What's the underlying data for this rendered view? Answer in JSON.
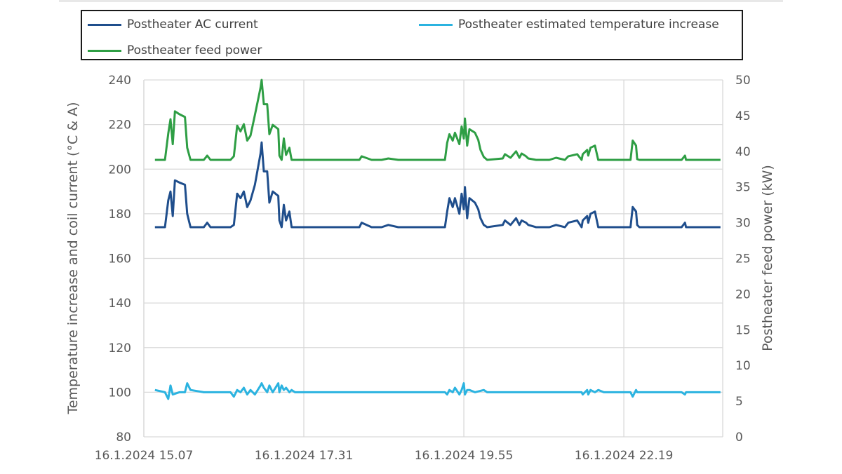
{
  "chart_data": {
    "type": "line",
    "ylabel_left": "Temperature increase  and  coil current (°C & A)",
    "ylabel_right": "Postheater feed power (kW)",
    "ylim_left": [
      80,
      240
    ],
    "ylim_right": [
      0,
      50
    ],
    "yticks_left": [
      "80",
      "100",
      "120",
      "140",
      "160",
      "180",
      "200",
      "220",
      "240"
    ],
    "yticks_right": [
      "0",
      "5",
      "10",
      "15",
      "20",
      "25",
      "30",
      "35",
      "40",
      "45",
      "50"
    ],
    "x_tick_labels": [
      "16.1.2024 15.07",
      "16.1.2024 17.31",
      "16.1.2024 19.55",
      "16.1.2024 22.19"
    ],
    "xlim": [
      "16.1.2024 15.07",
      "16.1.2024 23.48"
    ],
    "grid": true,
    "legend_position": "top",
    "series": [
      {
        "name": "Postheater AC current",
        "axis": "left",
        "color": "#1f4e8c",
        "points": [
          [
            "16.1.2024 15.17",
            174
          ],
          [
            "16.1.2024 15.26",
            174
          ],
          [
            "16.1.2024 15.29",
            186
          ],
          [
            "16.1.2024 15.31",
            190
          ],
          [
            "16.1.2024 15.33",
            179
          ],
          [
            "16.1.2024 15.35",
            195
          ],
          [
            "16.1.2024 15.39",
            194
          ],
          [
            "16.1.2024 15.44",
            193
          ],
          [
            "16.1.2024 15.46",
            180
          ],
          [
            "16.1.2024 15.49",
            174
          ],
          [
            "16.1.2024 16.01",
            174
          ],
          [
            "16.1.2024 16.04",
            176
          ],
          [
            "16.1.2024 16.07",
            174
          ],
          [
            "16.1.2024 16.25",
            174
          ],
          [
            "16.1.2024 16.28",
            175
          ],
          [
            "16.1.2024 16.31",
            189
          ],
          [
            "16.1.2024 16.34",
            187
          ],
          [
            "16.1.2024 16.37",
            190
          ],
          [
            "16.1.2024 16.40",
            183
          ],
          [
            "16.1.2024 16.43",
            186
          ],
          [
            "16.1.2024 16.47",
            193
          ],
          [
            "16.1.2024 16.52",
            207
          ],
          [
            "16.1.2024 16.53",
            212
          ],
          [
            "16.1.2024 16.55",
            199
          ],
          [
            "16.1.2024 16.58",
            199
          ],
          [
            "16.1.2024 17.00",
            185
          ],
          [
            "16.1.2024 17.03",
            190
          ],
          [
            "16.1.2024 17.08",
            188
          ],
          [
            "16.1.2024 17.09",
            177
          ],
          [
            "16.1.2024 17.11",
            174
          ],
          [
            "16.1.2024 17.13",
            184
          ],
          [
            "16.1.2024 17.15",
            177
          ],
          [
            "16.1.2024 17.18",
            181
          ],
          [
            "16.1.2024 17.20",
            174
          ],
          [
            "16.1.2024 17.23",
            174
          ],
          [
            "16.1.2024 17.57",
            174
          ],
          [
            "16.1.2024 18.06",
            174
          ],
          [
            "16.1.2024 18.21",
            174
          ],
          [
            "16.1.2024 18.23",
            176
          ],
          [
            "16.1.2024 18.32",
            174
          ],
          [
            "16.1.2024 18.41",
            174
          ],
          [
            "16.1.2024 18.47",
            175
          ],
          [
            "16.1.2024 18.56",
            174
          ],
          [
            "16.1.2024 19.11",
            174
          ],
          [
            "16.1.2024 19.32",
            174
          ],
          [
            "16.1.2024 19.38",
            174
          ],
          [
            "16.1.2024 19.40",
            181
          ],
          [
            "16.1.2024 19.42",
            187
          ],
          [
            "16.1.2024 19.45",
            183
          ],
          [
            "16.1.2024 19.47",
            187
          ],
          [
            "16.1.2024 19.51",
            180
          ],
          [
            "16.1.2024 19.53",
            189
          ],
          [
            "16.1.2024 19.55",
            182
          ],
          [
            "16.1.2024 19.56",
            192
          ],
          [
            "16.1.2024 19.58",
            178
          ],
          [
            "16.1.2024 20.00",
            187
          ],
          [
            "16.1.2024 20.05",
            185
          ],
          [
            "16.1.2024 20.08",
            182
          ],
          [
            "16.1.2024 20.10",
            178
          ],
          [
            "16.1.2024 20.13",
            175
          ],
          [
            "16.1.2024 20.16",
            174
          ],
          [
            "16.1.2024 20.30",
            175
          ],
          [
            "16.1.2024 20.32",
            177
          ],
          [
            "16.1.2024 20.37",
            175
          ],
          [
            "16.1.2024 20.42",
            178
          ],
          [
            "16.1.2024 20.45",
            175
          ],
          [
            "16.1.2024 20.47",
            177
          ],
          [
            "16.1.2024 20.51",
            176
          ],
          [
            "16.1.2024 20.53",
            175
          ],
          [
            "16.1.2024 21.00",
            174
          ],
          [
            "16.1.2024 21.12",
            174
          ],
          [
            "16.1.2024 21.18",
            175
          ],
          [
            "16.1.2024 21.26",
            174
          ],
          [
            "16.1.2024 21.29",
            176
          ],
          [
            "16.1.2024 21.37",
            177
          ],
          [
            "16.1.2024 21.41",
            174
          ],
          [
            "16.1.2024 21.42",
            177
          ],
          [
            "16.1.2024 21.46",
            179
          ],
          [
            "16.1.2024 21.47",
            176
          ],
          [
            "16.1.2024 21.49",
            180
          ],
          [
            "16.1.2024 21.53",
            181
          ],
          [
            "16.1.2024 21.56",
            174
          ],
          [
            "16.1.2024 22.01",
            174
          ],
          [
            "16.1.2024 22.22",
            174
          ],
          [
            "16.1.2024 22.25",
            174
          ],
          [
            "16.1.2024 22.27",
            183
          ],
          [
            "16.1.2024 22.30",
            181
          ],
          [
            "16.1.2024 22.31",
            175
          ],
          [
            "16.1.2024 22.33",
            174
          ],
          [
            "16.1.2024 22.49",
            174
          ],
          [
            "16.1.2024 23.11",
            174
          ],
          [
            "16.1.2024 23.14",
            176
          ],
          [
            "16.1.2024 23.15",
            174
          ],
          [
            "16.1.2024 23.46",
            174
          ]
        ]
      },
      {
        "name": "Postheater estimated temperature increase",
        "axis": "left",
        "color": "#2bb3e0",
        "points": [
          [
            "16.1.2024 15.17",
            101
          ],
          [
            "16.1.2024 15.26",
            100
          ],
          [
            "16.1.2024 15.29",
            97
          ],
          [
            "16.1.2024 15.31",
            103
          ],
          [
            "16.1.2024 15.33",
            99
          ],
          [
            "16.1.2024 15.39",
            100
          ],
          [
            "16.1.2024 15.44",
            100
          ],
          [
            "16.1.2024 15.46",
            104
          ],
          [
            "16.1.2024 15.49",
            101
          ],
          [
            "16.1.2024 16.01",
            100
          ],
          [
            "16.1.2024 16.25",
            100
          ],
          [
            "16.1.2024 16.28",
            98
          ],
          [
            "16.1.2024 16.31",
            101
          ],
          [
            "16.1.2024 16.34",
            100
          ],
          [
            "16.1.2024 16.37",
            102
          ],
          [
            "16.1.2024 16.40",
            99
          ],
          [
            "16.1.2024 16.43",
            101
          ],
          [
            "16.1.2024 16.47",
            99
          ],
          [
            "16.1.2024 16.52",
            103
          ],
          [
            "16.1.2024 16.53",
            104
          ],
          [
            "16.1.2024 16.55",
            102
          ],
          [
            "16.1.2024 16.58",
            100
          ],
          [
            "16.1.2024 17.00",
            103
          ],
          [
            "16.1.2024 17.03",
            100
          ],
          [
            "16.1.2024 17.08",
            104
          ],
          [
            "16.1.2024 17.09",
            100
          ],
          [
            "16.1.2024 17.11",
            103
          ],
          [
            "16.1.2024 17.13",
            101
          ],
          [
            "16.1.2024 17.15",
            102
          ],
          [
            "16.1.2024 17.18",
            100
          ],
          [
            "16.1.2024 17.20",
            101
          ],
          [
            "16.1.2024 17.23",
            100
          ],
          [
            "16.1.2024 18.06",
            100
          ],
          [
            "16.1.2024 19.32",
            100
          ],
          [
            "16.1.2024 19.38",
            100
          ],
          [
            "16.1.2024 19.40",
            99
          ],
          [
            "16.1.2024 19.42",
            101
          ],
          [
            "16.1.2024 19.45",
            100
          ],
          [
            "16.1.2024 19.47",
            102
          ],
          [
            "16.1.2024 19.51",
            99
          ],
          [
            "16.1.2024 19.53",
            101
          ],
          [
            "16.1.2024 19.55",
            104
          ],
          [
            "16.1.2024 19.56",
            99
          ],
          [
            "16.1.2024 19.58",
            101
          ],
          [
            "16.1.2024 20.00",
            101
          ],
          [
            "16.1.2024 20.05",
            100
          ],
          [
            "16.1.2024 20.13",
            101
          ],
          [
            "16.1.2024 20.16",
            100
          ],
          [
            "16.1.2024 21.41",
            100
          ],
          [
            "16.1.2024 21.42",
            99
          ],
          [
            "16.1.2024 21.46",
            101
          ],
          [
            "16.1.2024 21.47",
            99
          ],
          [
            "16.1.2024 21.49",
            101
          ],
          [
            "16.1.2024 21.53",
            100
          ],
          [
            "16.1.2024 21.56",
            101
          ],
          [
            "16.1.2024 22.01",
            100
          ],
          [
            "16.1.2024 22.25",
            100
          ],
          [
            "16.1.2024 22.27",
            98
          ],
          [
            "16.1.2024 22.30",
            101
          ],
          [
            "16.1.2024 22.31",
            100
          ],
          [
            "16.1.2024 23.11",
            100
          ],
          [
            "16.1.2024 23.14",
            99
          ],
          [
            "16.1.2024 23.15",
            100
          ],
          [
            "16.1.2024 23.46",
            100
          ]
        ]
      },
      {
        "name": "Postheater feed power",
        "axis": "right",
        "color": "#2e9e44",
        "points": [
          [
            "16.1.2024 15.17",
            38.8
          ],
          [
            "16.1.2024 15.26",
            38.8
          ],
          [
            "16.1.2024 15.29",
            42.5
          ],
          [
            "16.1.2024 15.31",
            44.5
          ],
          [
            "16.1.2024 15.33",
            41.0
          ],
          [
            "16.1.2024 15.35",
            45.6
          ],
          [
            "16.1.2024 15.39",
            45.2
          ],
          [
            "16.1.2024 15.44",
            44.8
          ],
          [
            "16.1.2024 15.46",
            40.5
          ],
          [
            "16.1.2024 15.49",
            38.8
          ],
          [
            "16.1.2024 16.01",
            38.8
          ],
          [
            "16.1.2024 16.04",
            39.4
          ],
          [
            "16.1.2024 16.07",
            38.8
          ],
          [
            "16.1.2024 16.25",
            38.8
          ],
          [
            "16.1.2024 16.28",
            39.3
          ],
          [
            "16.1.2024 16.31",
            43.6
          ],
          [
            "16.1.2024 16.34",
            42.8
          ],
          [
            "16.1.2024 16.37",
            43.8
          ],
          [
            "16.1.2024 16.40",
            41.5
          ],
          [
            "16.1.2024 16.43",
            42.2
          ],
          [
            "16.1.2024 16.47",
            45.1
          ],
          [
            "16.1.2024 16.52",
            48.9
          ],
          [
            "16.1.2024 16.53",
            50.0
          ],
          [
            "16.1.2024 16.55",
            46.6
          ],
          [
            "16.1.2024 16.58",
            46.6
          ],
          [
            "16.1.2024 17.00",
            42.4
          ],
          [
            "16.1.2024 17.03",
            43.7
          ],
          [
            "16.1.2024 17.08",
            43.1
          ],
          [
            "16.1.2024 17.09",
            39.4
          ],
          [
            "16.1.2024 17.11",
            38.8
          ],
          [
            "16.1.2024 17.13",
            41.8
          ],
          [
            "16.1.2024 17.15",
            39.5
          ],
          [
            "16.1.2024 17.18",
            40.5
          ],
          [
            "16.1.2024 17.20",
            38.8
          ],
          [
            "16.1.2024 17.23",
            38.8
          ],
          [
            "16.1.2024 17.57",
            38.8
          ],
          [
            "16.1.2024 18.06",
            38.8
          ],
          [
            "16.1.2024 18.21",
            38.8
          ],
          [
            "16.1.2024 18.23",
            39.3
          ],
          [
            "16.1.2024 18.32",
            38.8
          ],
          [
            "16.1.2024 18.41",
            38.8
          ],
          [
            "16.1.2024 18.47",
            39.0
          ],
          [
            "16.1.2024 18.56",
            38.8
          ],
          [
            "16.1.2024 19.11",
            38.8
          ],
          [
            "16.1.2024 19.32",
            38.8
          ],
          [
            "16.1.2024 19.38",
            38.8
          ],
          [
            "16.1.2024 19.40",
            41.2
          ],
          [
            "16.1.2024 19.42",
            42.4
          ],
          [
            "16.1.2024 19.45",
            41.5
          ],
          [
            "16.1.2024 19.47",
            42.6
          ],
          [
            "16.1.2024 19.51",
            41.0
          ],
          [
            "16.1.2024 19.53",
            43.5
          ],
          [
            "16.1.2024 19.55",
            41.8
          ],
          [
            "16.1.2024 19.56",
            44.6
          ],
          [
            "16.1.2024 19.58",
            40.8
          ],
          [
            "16.1.2024 20.00",
            43.1
          ],
          [
            "16.1.2024 20.05",
            42.6
          ],
          [
            "16.1.2024 20.08",
            41.6
          ],
          [
            "16.1.2024 20.10",
            40.2
          ],
          [
            "16.1.2024 20.13",
            39.2
          ],
          [
            "16.1.2024 20.16",
            38.8
          ],
          [
            "16.1.2024 20.30",
            39.0
          ],
          [
            "16.1.2024 20.32",
            39.6
          ],
          [
            "16.1.2024 20.37",
            39.1
          ],
          [
            "16.1.2024 20.42",
            40.0
          ],
          [
            "16.1.2024 20.45",
            39.1
          ],
          [
            "16.1.2024 20.47",
            39.7
          ],
          [
            "16.1.2024 20.51",
            39.3
          ],
          [
            "16.1.2024 20.53",
            39.0
          ],
          [
            "16.1.2024 21.00",
            38.8
          ],
          [
            "16.1.2024 21.12",
            38.8
          ],
          [
            "16.1.2024 21.18",
            39.1
          ],
          [
            "16.1.2024 21.26",
            38.8
          ],
          [
            "16.1.2024 21.29",
            39.3
          ],
          [
            "16.1.2024 21.37",
            39.6
          ],
          [
            "16.1.2024 21.41",
            38.8
          ],
          [
            "16.1.2024 21.42",
            39.6
          ],
          [
            "16.1.2024 21.46",
            40.2
          ],
          [
            "16.1.2024 21.47",
            39.4
          ],
          [
            "16.1.2024 21.49",
            40.5
          ],
          [
            "16.1.2024 21.53",
            40.8
          ],
          [
            "16.1.2024 21.56",
            38.8
          ],
          [
            "16.1.2024 22.01",
            38.8
          ],
          [
            "16.1.2024 22.22",
            38.8
          ],
          [
            "16.1.2024 22.25",
            38.8
          ],
          [
            "16.1.2024 22.27",
            41.5
          ],
          [
            "16.1.2024 22.30",
            40.8
          ],
          [
            "16.1.2024 22.31",
            38.9
          ],
          [
            "16.1.2024 22.33",
            38.8
          ],
          [
            "16.1.2024 22.49",
            38.8
          ],
          [
            "16.1.2024 23.11",
            38.8
          ],
          [
            "16.1.2024 23.14",
            39.4
          ],
          [
            "16.1.2024 23.15",
            38.8
          ],
          [
            "16.1.2024 23.46",
            38.8
          ]
        ]
      }
    ]
  }
}
